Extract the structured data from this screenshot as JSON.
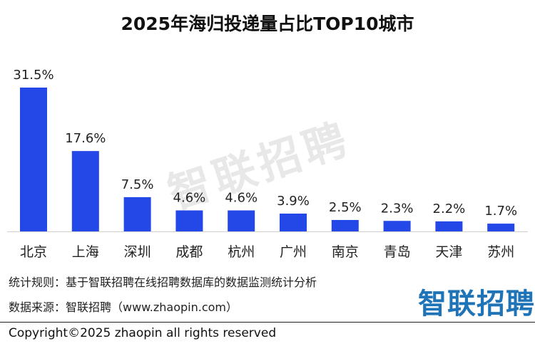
{
  "title": "2025年海归投递量占比TOP10城市",
  "watermark_text": "智联招聘",
  "note_rule": "统计规则：基于智联招聘在线招聘数据库的数据监测统计分析",
  "note_source": "数据来源：智联招聘（www.zhaopin.com）",
  "logo_text": "智联招聘",
  "copyright": "Copyright©2025 zhaopin all rights reserved",
  "bar_color": "#2447e8",
  "chart_data": {
    "type": "bar",
    "title": "2025年海归投递量占比TOP10城市",
    "xlabel": "",
    "ylabel": "",
    "grid": false,
    "categories": [
      "北京",
      "上海",
      "深圳",
      "成都",
      "杭州",
      "广州",
      "南京",
      "青岛",
      "天津",
      "苏州"
    ],
    "values": [
      31.5,
      17.6,
      7.5,
      4.6,
      4.6,
      3.9,
      2.5,
      2.3,
      2.2,
      1.7
    ],
    "value_labels": [
      "31.5%",
      "17.6%",
      "7.5%",
      "4.6%",
      "4.6%",
      "3.9%",
      "2.5%",
      "2.3%",
      "2.2%",
      "1.7%"
    ],
    "ylim": [
      0,
      31.5
    ]
  }
}
